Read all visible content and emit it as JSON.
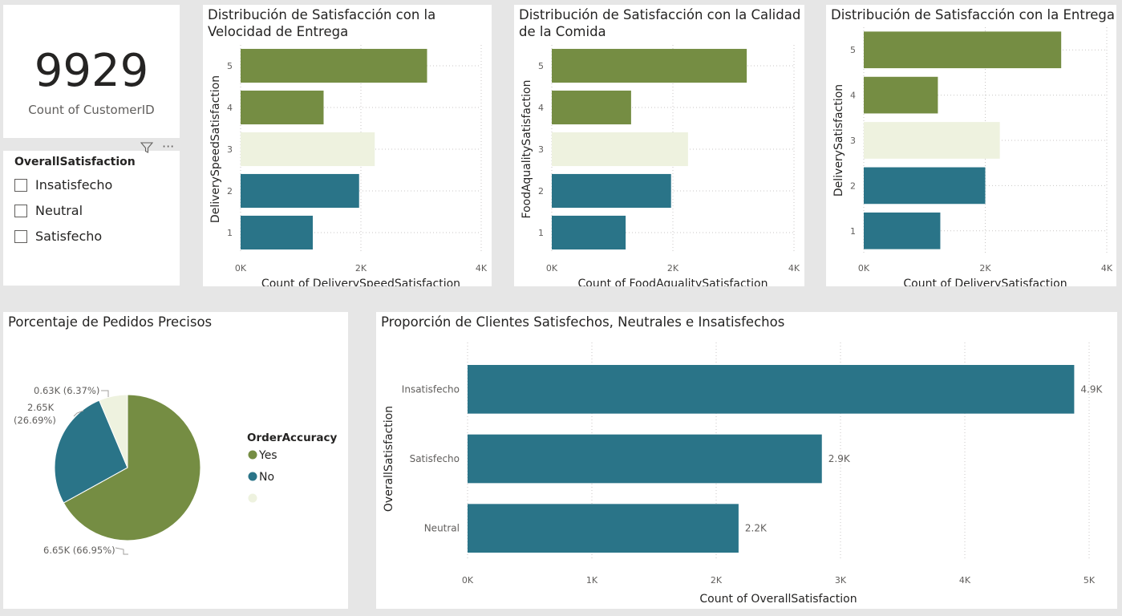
{
  "kpi": {
    "value": "9929",
    "label": "Count of CustomerID"
  },
  "slicer": {
    "title": "OverallSatisfaction",
    "items": [
      "Insatisfecho",
      "Neutral",
      "Satisfecho"
    ],
    "icons": [
      "filter-icon",
      "more-options-icon"
    ]
  },
  "colors": {
    "green": "#758d43",
    "light": "#eef2df",
    "teal": "#2a7488"
  },
  "chart_data": [
    {
      "type": "bar",
      "title_line1": "Distribución de Satisfacción con la",
      "title_line2": "Velocidad de Entrega",
      "xlabel": "Count of DeliverySpeedSatisfaction",
      "ylabel": "DeliverySpeedSatisfaction",
      "categories": [
        "5",
        "4",
        "3",
        "2",
        "1"
      ],
      "values": [
        3100,
        1380,
        2230,
        1970,
        1200
      ],
      "colors": [
        "green",
        "green",
        "light",
        "teal",
        "teal"
      ],
      "ticks": [
        "0K",
        "2K",
        "4K"
      ],
      "tick_values": [
        0,
        2000,
        4000
      ],
      "xlim": [
        0,
        4000
      ]
    },
    {
      "type": "bar",
      "title_line1": "Distribución de Satisfacción con la Calidad",
      "title_line2": "de la Comida",
      "xlabel": "Count of FoodAqualitySatisfaction",
      "ylabel": "FoodAqualitySatisfaction",
      "categories": [
        "5",
        "4",
        "3",
        "2",
        "1"
      ],
      "values": [
        3220,
        1310,
        2250,
        1970,
        1220
      ],
      "colors": [
        "green",
        "green",
        "light",
        "teal",
        "teal"
      ],
      "ticks": [
        "0K",
        "2K",
        "4K"
      ],
      "tick_values": [
        0,
        2000,
        4000
      ],
      "xlim": [
        0,
        4000
      ]
    },
    {
      "type": "bar",
      "title_line1": "Distribución de Satisfacción con la Entrega",
      "title_line2": "",
      "xlabel": "Count of DeliverySatisfaction",
      "ylabel": "DeliverySatisfaction",
      "categories": [
        "5",
        "4",
        "3",
        "2",
        "1"
      ],
      "values": [
        3250,
        1220,
        2240,
        2000,
        1260
      ],
      "colors": [
        "green",
        "green",
        "light",
        "teal",
        "teal"
      ],
      "ticks": [
        "0K",
        "2K",
        "4K"
      ],
      "tick_values": [
        0,
        2000,
        4000
      ],
      "xlim": [
        0,
        4000
      ]
    },
    {
      "type": "pie",
      "title": "Porcentaje de Pedidos Precisos",
      "legend_title": "OrderAccuracy",
      "slices": [
        {
          "name": "Yes",
          "value": 6650,
          "percent": 66.95,
          "color": "green",
          "label": "6.65K (66.95%)"
        },
        {
          "name": "No",
          "value": 2650,
          "percent": 26.69,
          "color": "teal",
          "label_line1": "2.65K",
          "label_line2": "(26.69%)"
        },
        {
          "name": "",
          "value": 630,
          "percent": 6.37,
          "color": "light",
          "label": "0.63K (6.37%)"
        }
      ]
    },
    {
      "type": "bar",
      "title": "Proporción de Clientes Satisfechos, Neutrales e Insatisfechos",
      "xlabel": "Count of OverallSatisfaction",
      "ylabel": "OverallSatisfaction",
      "categories": [
        "Insatisfecho",
        "Satisfecho",
        "Neutral"
      ],
      "values": [
        4880,
        2850,
        2180
      ],
      "data_labels": [
        "4.9K",
        "2.9K",
        "2.2K"
      ],
      "ticks": [
        "0K",
        "1K",
        "2K",
        "3K",
        "4K",
        "5K"
      ],
      "tick_values": [
        0,
        1000,
        2000,
        3000,
        4000,
        5000
      ],
      "xlim": [
        0,
        5000
      ]
    }
  ]
}
